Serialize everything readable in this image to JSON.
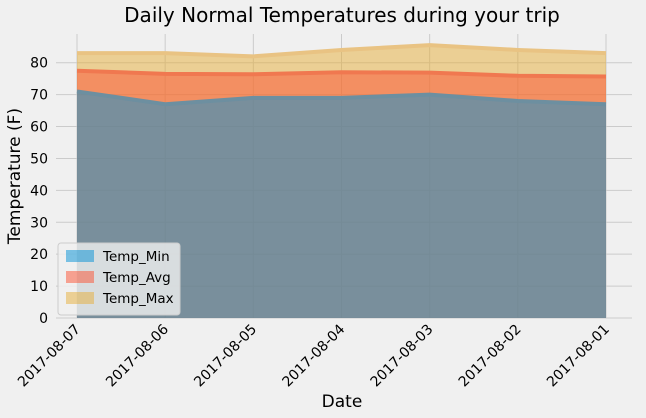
{
  "chart_data": {
    "type": "area",
    "title": "Daily Normal Temperatures during your trip",
    "xlabel": "Date",
    "ylabel": "Temperature (F)",
    "categories": [
      "2017-08-07",
      "2017-08-06",
      "2017-08-05",
      "2017-08-04",
      "2017-08-03",
      "2017-08-02",
      "2017-08-01"
    ],
    "ylim": [
      0,
      89
    ],
    "yticks": [
      0,
      10,
      20,
      30,
      40,
      50,
      60,
      70,
      80
    ],
    "grid": true,
    "stacked": false,
    "legend_position": "lower-left",
    "series": [
      {
        "name": "Temp_Min",
        "color": "#008fd5",
        "line_color": "#6d8fa0",
        "values": [
          71.0,
          67.0,
          69.0,
          69.0,
          70.0,
          68.0,
          67.0
        ]
      },
      {
        "name": "Temp_Avg",
        "color": "#fc4f30",
        "line_color": "#f07850",
        "values": [
          77.5,
          76.5,
          76.4,
          77.0,
          76.9,
          75.9,
          75.7
        ]
      },
      {
        "name": "Temp_Max",
        "color": "#e5ae38",
        "line_color": "#e9c383",
        "values": [
          83.0,
          83.0,
          82.0,
          84.0,
          85.5,
          84.0,
          83.0
        ]
      }
    ]
  }
}
